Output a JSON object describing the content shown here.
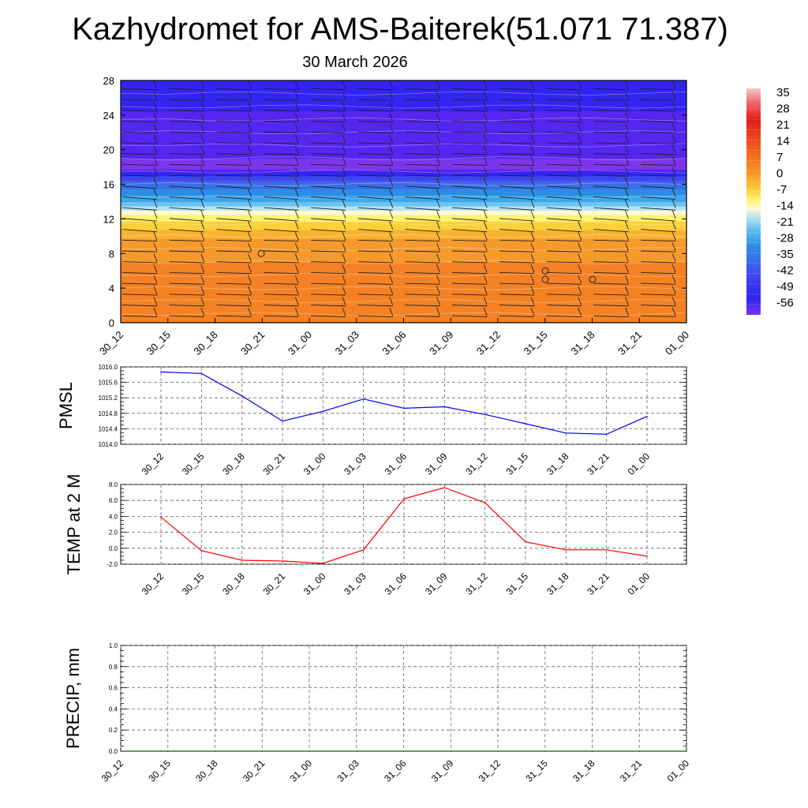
{
  "title": "Kazhydromet for AMS-Baiterek(51.071 71.387)",
  "subtitle": "30 March 2026",
  "chart_data": [
    {
      "type": "heatmap",
      "name": "temperature-cross-section",
      "title": "",
      "xlabel": "",
      "ylabel": "",
      "x_ticks": [
        "30_12",
        "30_15",
        "30_18",
        "30_21",
        "31_00",
        "31_03",
        "31_06",
        "31_09",
        "31_12",
        "31_15",
        "31_18",
        "31_21",
        "01_00"
      ],
      "y_ticks": [
        "0",
        "4",
        "8",
        "12",
        "16",
        "20",
        "24",
        "28"
      ],
      "ylim": [
        0,
        28
      ],
      "colorbar": {
        "labels": [
          "35",
          "28",
          "21",
          "14",
          "7",
          "0",
          "-7",
          "-14",
          "-21",
          "-28",
          "-35",
          "-42",
          "-49",
          "-56"
        ],
        "colors": [
          "#f7c9c9",
          "#f07b7b",
          "#e31a1c",
          "#e6272a",
          "#ee4d20",
          "#f3681a",
          "#f48224",
          "#f79a2c",
          "#f9b330",
          "#fbd13a",
          "#fff174",
          "#fffbd0",
          "#b6e2f2",
          "#6ec4ee",
          "#3ea6ea",
          "#2b8de4",
          "#3a6ee6",
          "#4a58e8",
          "#3b44ee",
          "#3325f2",
          "#5426f0",
          "#7d35ec"
        ]
      },
      "profile_by_height": [
        {
          "height": 0,
          "temp": 8
        },
        {
          "height": 2,
          "temp": 10
        },
        {
          "height": 4,
          "temp": 10
        },
        {
          "height": 7,
          "temp": 7
        },
        {
          "height": 10,
          "temp": 2
        },
        {
          "height": 12,
          "temp": -7
        },
        {
          "height": 13,
          "temp": -14
        },
        {
          "height": 14,
          "temp": -24
        },
        {
          "height": 16,
          "temp": -35
        },
        {
          "height": 18,
          "temp": -56
        },
        {
          "height": 20,
          "temp": -52
        },
        {
          "height": 24,
          "temp": -50
        },
        {
          "height": 28,
          "temp": -46
        }
      ]
    },
    {
      "type": "line",
      "name": "pmsl",
      "ylabel": "PMSL",
      "categories": [
        "30_12",
        "30_15",
        "30_18",
        "30_21",
        "31_00",
        "31_03",
        "31_06",
        "31_09",
        "31_12",
        "31_15",
        "31_18",
        "31_21",
        "01_00"
      ],
      "series": [
        {
          "name": "PMSL",
          "color": "#0000ff",
          "values": [
            1015.87,
            1015.83,
            1015.25,
            1014.6,
            1014.85,
            1015.17,
            1014.93,
            1014.97,
            1014.77,
            1014.53,
            1014.29,
            1014.26,
            1014.72
          ]
        }
      ],
      "ylim": [
        1014.0,
        1016.0
      ],
      "y_ticks": [
        "1014.0",
        "1014.4",
        "1014.8",
        "1015.2",
        "1015.6",
        "1016.0"
      ]
    },
    {
      "type": "line",
      "name": "temp-2m",
      "ylabel": "TEMP at 2 M",
      "categories": [
        "30_12",
        "30_15",
        "30_18",
        "30_21",
        "31_00",
        "31_03",
        "31_06",
        "31_09",
        "31_12",
        "31_15",
        "31_18",
        "31_21",
        "01_00"
      ],
      "series": [
        {
          "name": "TEMP at 2 M",
          "color": "#ff0000",
          "values": [
            3.9,
            -0.3,
            -1.5,
            -1.6,
            -1.9,
            -0.2,
            6.2,
            7.6,
            5.7,
            0.8,
            -0.2,
            -0.2,
            -1.0
          ]
        }
      ],
      "ylim": [
        -2.0,
        8.0
      ],
      "y_ticks": [
        "-2.0",
        "0.0",
        "2.0",
        "4.0",
        "6.0",
        "8.0"
      ]
    },
    {
      "type": "line",
      "name": "precip",
      "ylabel": "PRECIP, mm",
      "categories": [
        "30_12",
        "30_15",
        "30_18",
        "30_21",
        "31_00",
        "31_03",
        "31_06",
        "31_09",
        "31_12",
        "31_15",
        "31_18",
        "31_21",
        "01_00"
      ],
      "series": [
        {
          "name": "PRECIP, mm",
          "color": "#006400",
          "values": [
            0,
            0,
            0,
            0,
            0,
            0,
            0,
            0,
            0,
            0,
            0,
            0,
            0
          ]
        }
      ],
      "ylim": [
        0.0,
        1.0
      ],
      "y_ticks": [
        "0.0",
        "0.2",
        "0.4",
        "0.6",
        "0.8",
        "1.0"
      ]
    }
  ]
}
